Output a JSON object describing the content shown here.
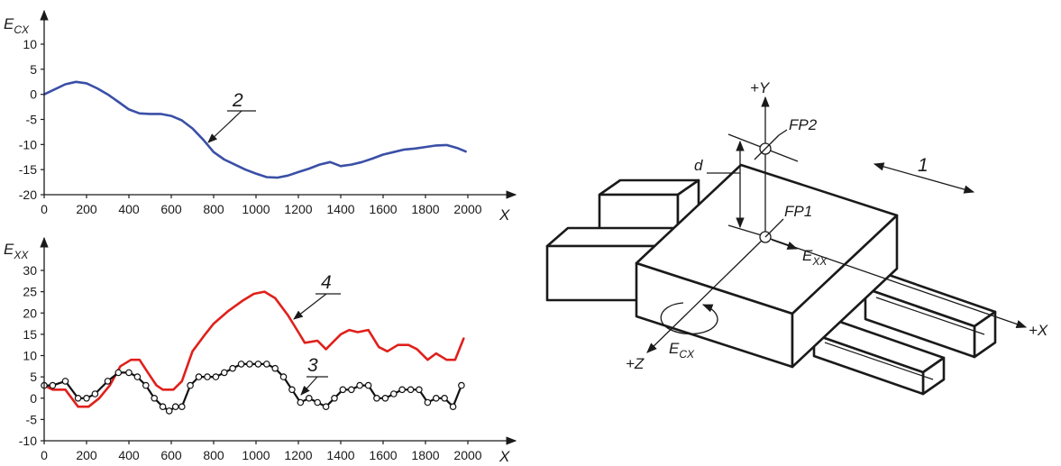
{
  "chart_data": [
    {
      "type": "line",
      "ylabel_base": "E",
      "ylabel_sub": "CX",
      "xlabel": "X",
      "xlim": [
        0,
        2000
      ],
      "ylim": [
        -20,
        15
      ],
      "x_ticks": [
        0,
        200,
        400,
        600,
        800,
        1000,
        1200,
        1400,
        1600,
        1800,
        2000
      ],
      "y_ticks": [
        -20,
        -15,
        -10,
        -5,
        0,
        5,
        10
      ],
      "series": [
        {
          "name": "2",
          "color": "#3a4fa6",
          "points": [
            [
              0,
              0
            ],
            [
              50,
              1
            ],
            [
              100,
              2
            ],
            [
              150,
              2.5
            ],
            [
              200,
              2.2
            ],
            [
              250,
              1.2
            ],
            [
              300,
              0
            ],
            [
              350,
              -1.5
            ],
            [
              400,
              -3
            ],
            [
              450,
              -3.8
            ],
            [
              500,
              -3.9
            ],
            [
              550,
              -3.9
            ],
            [
              600,
              -4.3
            ],
            [
              650,
              -5.2
            ],
            [
              700,
              -6.8
            ],
            [
              750,
              -9
            ],
            [
              800,
              -11.5
            ],
            [
              850,
              -13
            ],
            [
              900,
              -14
            ],
            [
              950,
              -15
            ],
            [
              1000,
              -15.8
            ],
            [
              1050,
              -16.5
            ],
            [
              1100,
              -16.6
            ],
            [
              1150,
              -16.2
            ],
            [
              1200,
              -15.5
            ],
            [
              1250,
              -14.8
            ],
            [
              1300,
              -14
            ],
            [
              1350,
              -13.5
            ],
            [
              1400,
              -14.3
            ],
            [
              1450,
              -14
            ],
            [
              1500,
              -13.5
            ],
            [
              1550,
              -12.8
            ],
            [
              1600,
              -12
            ],
            [
              1650,
              -11.5
            ],
            [
              1700,
              -11
            ],
            [
              1750,
              -10.8
            ],
            [
              1800,
              -10.5
            ],
            [
              1850,
              -10.2
            ],
            [
              1900,
              -10.1
            ],
            [
              1950,
              -10.7
            ],
            [
              1990,
              -11.4
            ]
          ]
        }
      ],
      "callouts": [
        {
          "text": "2"
        }
      ]
    },
    {
      "type": "line",
      "ylabel_base": "E",
      "ylabel_sub": "XX",
      "xlabel": "X",
      "xlim": [
        0,
        2000
      ],
      "ylim": [
        -10,
        35
      ],
      "x_ticks": [
        0,
        200,
        400,
        600,
        800,
        1000,
        1200,
        1400,
        1600,
        1800,
        2000
      ],
      "y_ticks": [
        -10,
        -5,
        0,
        5,
        10,
        15,
        20,
        25,
        30
      ],
      "series": [
        {
          "name": "4",
          "color": "#e0201b",
          "markers": false,
          "points": [
            [
              0,
              3
            ],
            [
              40,
              2
            ],
            [
              100,
              2
            ],
            [
              160,
              -2
            ],
            [
              210,
              -2
            ],
            [
              260,
              0
            ],
            [
              310,
              3
            ],
            [
              360,
              7.5
            ],
            [
              410,
              9
            ],
            [
              450,
              9
            ],
            [
              490,
              6
            ],
            [
              530,
              3
            ],
            [
              560,
              2
            ],
            [
              610,
              2
            ],
            [
              650,
              4
            ],
            [
              700,
              11
            ],
            [
              760,
              15
            ],
            [
              800,
              17.5
            ],
            [
              870,
              20.5
            ],
            [
              940,
              23
            ],
            [
              990,
              24.5
            ],
            [
              1040,
              25
            ],
            [
              1090,
              23.5
            ],
            [
              1150,
              19.5
            ],
            [
              1200,
              15.5
            ],
            [
              1230,
              13
            ],
            [
              1290,
              13.5
            ],
            [
              1330,
              11.5
            ],
            [
              1400,
              15
            ],
            [
              1440,
              16
            ],
            [
              1480,
              15.5
            ],
            [
              1530,
              16
            ],
            [
              1580,
              12
            ],
            [
              1620,
              11
            ],
            [
              1670,
              12.5
            ],
            [
              1720,
              12.5
            ],
            [
              1760,
              11.5
            ],
            [
              1810,
              9
            ],
            [
              1850,
              10.5
            ],
            [
              1900,
              9
            ],
            [
              1940,
              9
            ],
            [
              1980,
              14
            ]
          ]
        },
        {
          "name": "3",
          "color": "#111111",
          "markers": true,
          "points": [
            [
              0,
              3
            ],
            [
              40,
              3
            ],
            [
              100,
              4
            ],
            [
              160,
              0
            ],
            [
              200,
              0
            ],
            [
              240,
              1
            ],
            [
              300,
              4
            ],
            [
              350,
              6
            ],
            [
              400,
              6
            ],
            [
              440,
              5
            ],
            [
              480,
              3
            ],
            [
              520,
              0
            ],
            [
              560,
              -2
            ],
            [
              590,
              -3
            ],
            [
              620,
              -2
            ],
            [
              650,
              -2
            ],
            [
              690,
              3
            ],
            [
              730,
              5
            ],
            [
              770,
              5
            ],
            [
              810,
              5
            ],
            [
              850,
              6
            ],
            [
              890,
              7
            ],
            [
              930,
              8
            ],
            [
              970,
              8
            ],
            [
              1010,
              8
            ],
            [
              1050,
              8
            ],
            [
              1090,
              7
            ],
            [
              1130,
              5
            ],
            [
              1170,
              2
            ],
            [
              1210,
              -1
            ],
            [
              1250,
              0
            ],
            [
              1290,
              -1
            ],
            [
              1330,
              -2
            ],
            [
              1370,
              0
            ],
            [
              1410,
              2
            ],
            [
              1450,
              2
            ],
            [
              1490,
              3
            ],
            [
              1530,
              3
            ],
            [
              1570,
              0
            ],
            [
              1610,
              0
            ],
            [
              1650,
              1
            ],
            [
              1690,
              2
            ],
            [
              1730,
              2
            ],
            [
              1770,
              2
            ],
            [
              1810,
              -1
            ],
            [
              1850,
              0
            ],
            [
              1890,
              0
            ],
            [
              1930,
              -2
            ],
            [
              1970,
              3
            ]
          ]
        }
      ],
      "callouts": [
        {
          "text": "4"
        },
        {
          "text": "3"
        }
      ]
    }
  ],
  "diagram": {
    "y_axis_label": "+Y",
    "x_axis_label": "+X",
    "z_axis_label": "+Z",
    "fp2_label": "FP2",
    "fp1_label": "FP1",
    "d_label": "d",
    "exx_base": "E",
    "exx_sub": "XX",
    "ecx_base": "E",
    "ecx_sub": "CX",
    "item_label": "1"
  }
}
